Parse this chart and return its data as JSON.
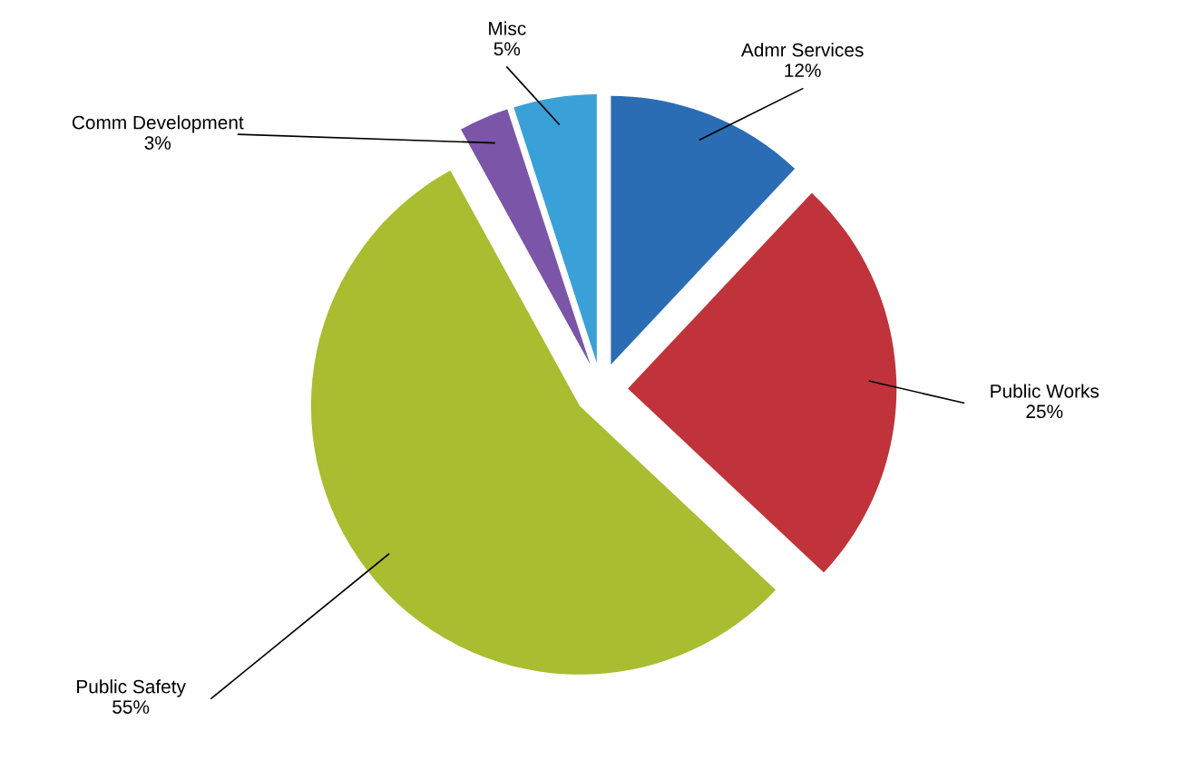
{
  "chart_data": {
    "type": "pie",
    "categories": [
      "Admr Services",
      "Public Works",
      "Public Safety",
      "Comm Development",
      "Misc"
    ],
    "values": [
      12,
      25,
      55,
      3,
      5
    ],
    "colors": [
      "#2a6db5",
      "#c0333a",
      "#a8bd2f",
      "#7a55a8",
      "#3aa0d8"
    ],
    "value_labels": [
      "12%",
      "25%",
      "55%",
      "3%",
      "5%"
    ],
    "legend": false
  }
}
